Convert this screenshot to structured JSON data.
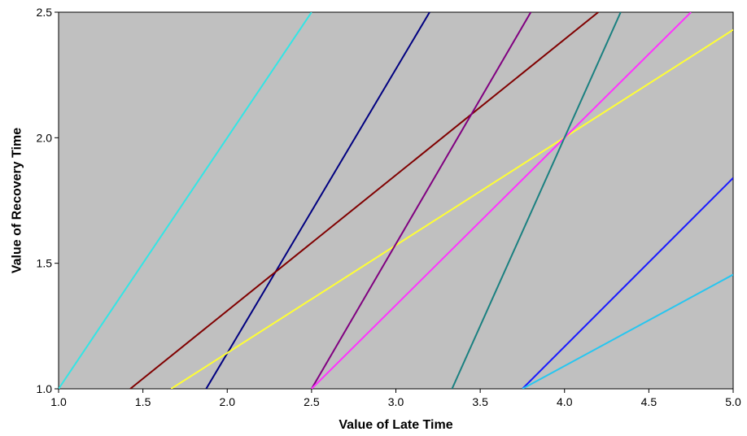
{
  "chart_data": {
    "type": "line",
    "title": "",
    "xlabel": "Value of Late Time",
    "ylabel": "Value of Recovery Time",
    "xlim": [
      1.0,
      5.0
    ],
    "ylim": [
      1.0,
      2.5
    ],
    "x_ticks": [
      "1.0",
      "1.5",
      "2.0",
      "2.5",
      "3.0",
      "3.5",
      "4.0",
      "4.5",
      "5.0"
    ],
    "y_ticks": [
      "1.0",
      "1.5",
      "2.0",
      "2.5"
    ],
    "grid": false,
    "legend": "none",
    "plot_background": "#c0c0c0",
    "series": [
      {
        "color": "#33e5e5",
        "points": [
          [
            1.0,
            1.0
          ],
          [
            2.5,
            2.5
          ]
        ]
      },
      {
        "color": "#000080",
        "points": [
          [
            1.875,
            1.0
          ],
          [
            3.2,
            2.5
          ]
        ]
      },
      {
        "color": "#800000",
        "points": [
          [
            1.425,
            1.0
          ],
          [
            4.2,
            2.5
          ]
        ]
      },
      {
        "color": "#ffff33",
        "points": [
          [
            1.667,
            1.0
          ],
          [
            5.0,
            2.43
          ]
        ]
      },
      {
        "color": "#800080",
        "points": [
          [
            2.5,
            1.0
          ],
          [
            3.8,
            2.5
          ]
        ]
      },
      {
        "color": "#ff33ff",
        "points": [
          [
            2.5,
            1.0
          ],
          [
            4.75,
            2.5
          ]
        ]
      },
      {
        "color": "#1a8080",
        "points": [
          [
            3.333,
            1.0
          ],
          [
            4.333,
            2.5
          ]
        ]
      },
      {
        "color": "#1a1aff",
        "points": [
          [
            3.75,
            1.0
          ],
          [
            5.0,
            1.84
          ]
        ]
      },
      {
        "color": "#26c6f0",
        "points": [
          [
            3.75,
            1.0
          ],
          [
            5.0,
            1.455
          ]
        ]
      }
    ]
  }
}
